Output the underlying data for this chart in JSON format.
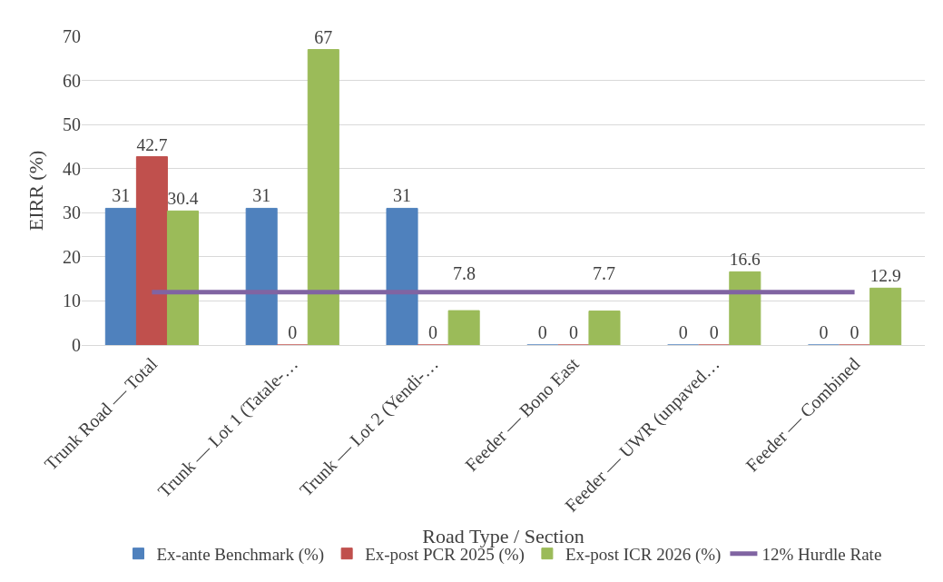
{
  "chart_data": {
    "type": "bar",
    "xlabel": "Road Type / Section",
    "ylabel": "EIRR (%)",
    "categories": [
      "Trunk Road — Total",
      "Trunk — Lot 1 (Tatale-…",
      "Trunk — Lot 2 (Yendi-…",
      "Feeder — Bono East",
      "Feeder — UWR (unpaved…",
      "Feeder — Combined"
    ],
    "series": [
      {
        "name": "Ex-ante Benchmark (%)",
        "color": "#4f81bd",
        "values": [
          31,
          31,
          31,
          0,
          0,
          0
        ],
        "value_labels": [
          "31",
          "31",
          "31",
          "0",
          "0",
          "0"
        ]
      },
      {
        "name": "Ex-post PCR 2025 (%)",
        "color": "#c0504d",
        "values": [
          42.7,
          0,
          0,
          0,
          0,
          0
        ],
        "value_labels": [
          "42.7",
          "0",
          "0",
          "0",
          "0",
          "0"
        ]
      },
      {
        "name": "Ex-post ICR 2026 (%)",
        "color": "#9bbb59",
        "values": [
          30.4,
          67,
          7.8,
          7.7,
          16.6,
          12.9
        ],
        "value_labels": [
          "30.4",
          "67",
          "7.8",
          "7.7",
          "16.6",
          "12.9"
        ]
      },
      {
        "name": "12% Hurdle Rate",
        "color": "#8064a2",
        "type": "line",
        "values": [
          12,
          12,
          12,
          12,
          12,
          12
        ]
      }
    ],
    "ylim": [
      0,
      70
    ],
    "yticks": [
      0,
      10,
      20,
      30,
      40,
      50,
      60,
      70
    ],
    "grid": "y",
    "legend": "bottom"
  }
}
